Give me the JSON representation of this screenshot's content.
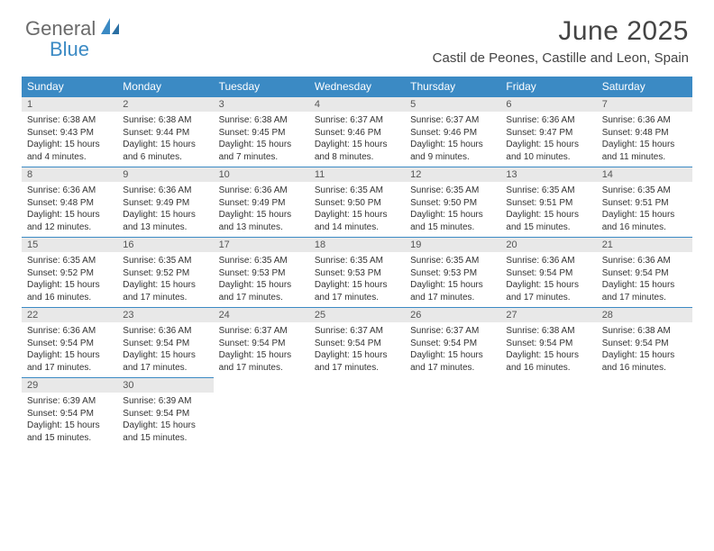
{
  "logo": {
    "text1": "General",
    "text2": "Blue"
  },
  "title": "June 2025",
  "location": "Castil de Peones, Castille and Leon, Spain",
  "colors": {
    "header_bg": "#3b8ac4",
    "header_text": "#ffffff",
    "daynum_bg": "#e8e8e8",
    "daynum_border": "#3b8ac4",
    "body_text": "#333333",
    "logo_gray": "#6b6b6b",
    "logo_blue": "#3b8ac4"
  },
  "weekdays": [
    "Sunday",
    "Monday",
    "Tuesday",
    "Wednesday",
    "Thursday",
    "Friday",
    "Saturday"
  ],
  "weeks": [
    [
      {
        "n": "1",
        "sr": "6:38 AM",
        "ss": "9:43 PM",
        "dl": "15 hours and 4 minutes."
      },
      {
        "n": "2",
        "sr": "6:38 AM",
        "ss": "9:44 PM",
        "dl": "15 hours and 6 minutes."
      },
      {
        "n": "3",
        "sr": "6:38 AM",
        "ss": "9:45 PM",
        "dl": "15 hours and 7 minutes."
      },
      {
        "n": "4",
        "sr": "6:37 AM",
        "ss": "9:46 PM",
        "dl": "15 hours and 8 minutes."
      },
      {
        "n": "5",
        "sr": "6:37 AM",
        "ss": "9:46 PM",
        "dl": "15 hours and 9 minutes."
      },
      {
        "n": "6",
        "sr": "6:36 AM",
        "ss": "9:47 PM",
        "dl": "15 hours and 10 minutes."
      },
      {
        "n": "7",
        "sr": "6:36 AM",
        "ss": "9:48 PM",
        "dl": "15 hours and 11 minutes."
      }
    ],
    [
      {
        "n": "8",
        "sr": "6:36 AM",
        "ss": "9:48 PM",
        "dl": "15 hours and 12 minutes."
      },
      {
        "n": "9",
        "sr": "6:36 AM",
        "ss": "9:49 PM",
        "dl": "15 hours and 13 minutes."
      },
      {
        "n": "10",
        "sr": "6:36 AM",
        "ss": "9:49 PM",
        "dl": "15 hours and 13 minutes."
      },
      {
        "n": "11",
        "sr": "6:35 AM",
        "ss": "9:50 PM",
        "dl": "15 hours and 14 minutes."
      },
      {
        "n": "12",
        "sr": "6:35 AM",
        "ss": "9:50 PM",
        "dl": "15 hours and 15 minutes."
      },
      {
        "n": "13",
        "sr": "6:35 AM",
        "ss": "9:51 PM",
        "dl": "15 hours and 15 minutes."
      },
      {
        "n": "14",
        "sr": "6:35 AM",
        "ss": "9:51 PM",
        "dl": "15 hours and 16 minutes."
      }
    ],
    [
      {
        "n": "15",
        "sr": "6:35 AM",
        "ss": "9:52 PM",
        "dl": "15 hours and 16 minutes."
      },
      {
        "n": "16",
        "sr": "6:35 AM",
        "ss": "9:52 PM",
        "dl": "15 hours and 17 minutes."
      },
      {
        "n": "17",
        "sr": "6:35 AM",
        "ss": "9:53 PM",
        "dl": "15 hours and 17 minutes."
      },
      {
        "n": "18",
        "sr": "6:35 AM",
        "ss": "9:53 PM",
        "dl": "15 hours and 17 minutes."
      },
      {
        "n": "19",
        "sr": "6:35 AM",
        "ss": "9:53 PM",
        "dl": "15 hours and 17 minutes."
      },
      {
        "n": "20",
        "sr": "6:36 AM",
        "ss": "9:54 PM",
        "dl": "15 hours and 17 minutes."
      },
      {
        "n": "21",
        "sr": "6:36 AM",
        "ss": "9:54 PM",
        "dl": "15 hours and 17 minutes."
      }
    ],
    [
      {
        "n": "22",
        "sr": "6:36 AM",
        "ss": "9:54 PM",
        "dl": "15 hours and 17 minutes."
      },
      {
        "n": "23",
        "sr": "6:36 AM",
        "ss": "9:54 PM",
        "dl": "15 hours and 17 minutes."
      },
      {
        "n": "24",
        "sr": "6:37 AM",
        "ss": "9:54 PM",
        "dl": "15 hours and 17 minutes."
      },
      {
        "n": "25",
        "sr": "6:37 AM",
        "ss": "9:54 PM",
        "dl": "15 hours and 17 minutes."
      },
      {
        "n": "26",
        "sr": "6:37 AM",
        "ss": "9:54 PM",
        "dl": "15 hours and 17 minutes."
      },
      {
        "n": "27",
        "sr": "6:38 AM",
        "ss": "9:54 PM",
        "dl": "15 hours and 16 minutes."
      },
      {
        "n": "28",
        "sr": "6:38 AM",
        "ss": "9:54 PM",
        "dl": "15 hours and 16 minutes."
      }
    ],
    [
      {
        "n": "29",
        "sr": "6:39 AM",
        "ss": "9:54 PM",
        "dl": "15 hours and 15 minutes."
      },
      {
        "n": "30",
        "sr": "6:39 AM",
        "ss": "9:54 PM",
        "dl": "15 hours and 15 minutes."
      },
      null,
      null,
      null,
      null,
      null
    ]
  ],
  "labels": {
    "sunrise": "Sunrise:",
    "sunset": "Sunset:",
    "daylight": "Daylight:"
  }
}
